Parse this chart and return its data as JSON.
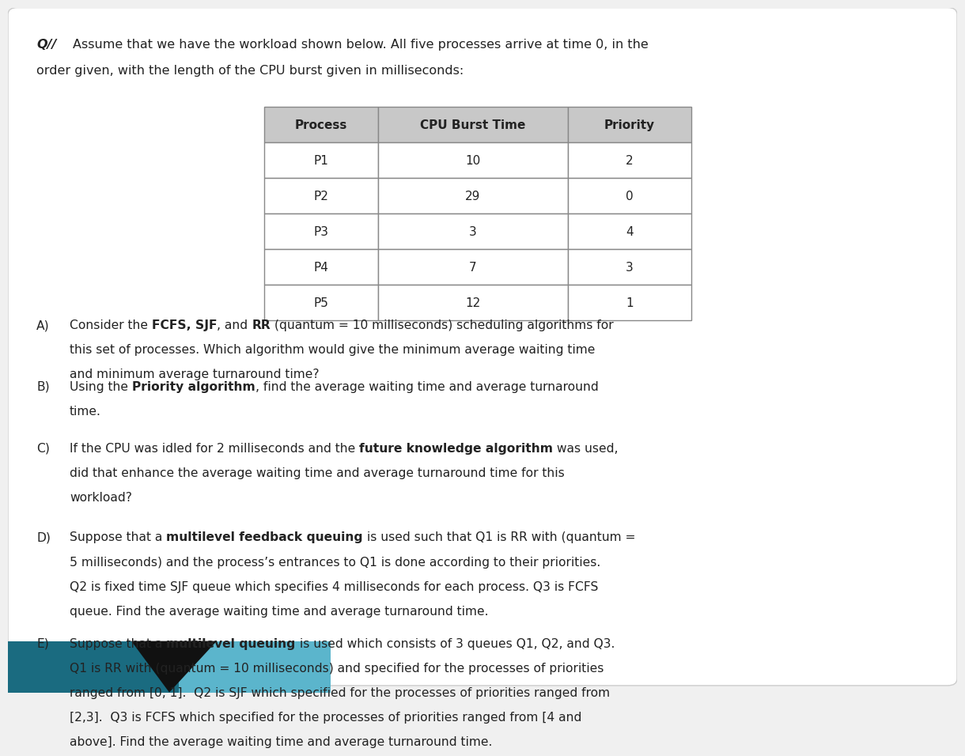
{
  "title_prefix": "Q// ",
  "title_text": "Assume that we have the workload shown below. All five processes arrive at time 0, in the\norder given, with the length of the CPU burst given in milliseconds:",
  "table_headers": [
    "Process",
    "CPU Burst Time",
    "Priority"
  ],
  "table_data": [
    [
      "P1",
      "10",
      "2"
    ],
    [
      "P2",
      "29",
      "0"
    ],
    [
      "P3",
      "3",
      "4"
    ],
    [
      "P4",
      "7",
      "3"
    ],
    [
      "P5",
      "12",
      "1"
    ]
  ],
  "questions": [
    {
      "label": "A)",
      "parts": [
        {
          "text": "Consider the ",
          "bold": false
        },
        {
          "text": "FCFS, SJF",
          "bold": true
        },
        {
          "text": ", and ",
          "bold": false
        },
        {
          "text": "RR",
          "bold": true
        },
        {
          "text": " (quantum = 10 milliseconds) scheduling algorithms for\nthis set of processes. Which algorithm would give the minimum average waiting time\nand minimum average turnaround time?",
          "bold": false
        }
      ]
    },
    {
      "label": "B)",
      "parts": [
        {
          "text": "Using the ",
          "bold": false
        },
        {
          "text": "Priority algorithm",
          "bold": true
        },
        {
          "text": ", find the average waiting time and average turnaround\ntime.",
          "bold": false
        }
      ]
    },
    {
      "label": "C)",
      "parts": [
        {
          "text": "If the CPU was idled for 2 milliseconds and the ",
          "bold": false
        },
        {
          "text": "future knowledge algorithm",
          "bold": true
        },
        {
          "text": " was used,\ndid that enhance the average waiting time and average turnaround time for this\nworkload?",
          "bold": false
        }
      ]
    },
    {
      "label": "D)",
      "parts": [
        {
          "text": "Suppose that a ",
          "bold": false
        },
        {
          "text": "multilevel feedback queuing",
          "bold": true
        },
        {
          "text": " is used such that Q1 is RR with (quantum =\n5 milliseconds) and the process’s entrances to Q1 is done according to their priorities.\nQ2 is fixed time SJF queue which specifies 4 milliseconds for each process. Q3 is FCFS\nqueue. Find the average waiting time and average turnaround time.",
          "bold": false
        }
      ]
    },
    {
      "label": "E)",
      "parts": [
        {
          "text": "Suppose that a ",
          "bold": false
        },
        {
          "text": "multilevel queuing",
          "bold": true
        },
        {
          "text": " is used which consists of 3 queues Q1, Q2, and Q3.\nQ1 is RR with (quantum = 10 milliseconds) and specified for the processes of priorities\nranged from [0, 1].  Q2 is SJF which specified for the processes of priorities ranged from\n[2,3].  Q3 is FCFS which specified for the processes of priorities ranged from [4 and\nabove]. Find the average waiting time and average turnaround time.",
          "bold": false
        }
      ]
    }
  ],
  "bg_color": "#f0f0f0",
  "card_color": "#ffffff",
  "header_bg": "#c8c8c8",
  "table_border_color": "#888888",
  "text_color": "#222222",
  "teal_color": "#3a8fa0",
  "dark_teal": "#1a5f70",
  "black_triangle": "#111111"
}
